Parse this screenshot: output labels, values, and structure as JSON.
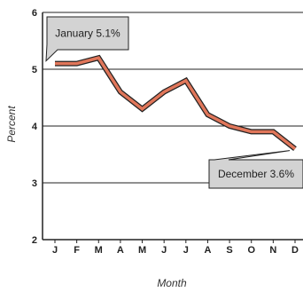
{
  "chart_data": {
    "type": "line",
    "categories": [
      "J",
      "F",
      "M",
      "A",
      "M",
      "J",
      "J",
      "A",
      "S",
      "O",
      "N",
      "D"
    ],
    "series": [
      {
        "values": [
          5.1,
          5.1,
          5.2,
          4.6,
          4.3,
          4.6,
          4.8,
          4.2,
          4.0,
          3.9,
          3.9,
          3.6
        ]
      }
    ],
    "ylim": [
      2,
      6
    ],
    "yticks": [
      2,
      3,
      4,
      5,
      6
    ],
    "xlabel": "Month",
    "ylabel": "Percent",
    "grid": "horizontal",
    "line_color": "#e0765a",
    "line_outline_color": "#222222",
    "annotations": [
      {
        "text": "January 5.1%",
        "category_index": 0
      },
      {
        "text": "December 3.6%",
        "category_index": 11
      }
    ]
  }
}
